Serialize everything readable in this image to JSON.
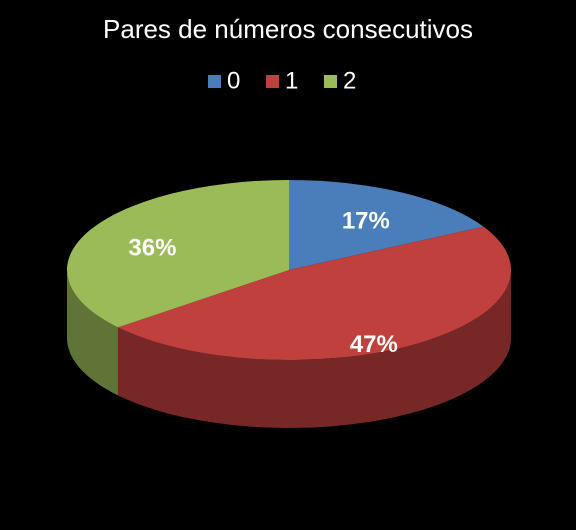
{
  "chart_data": {
    "type": "pie",
    "title": "Pares de números consecutivos",
    "categories": [
      "0",
      "1",
      "2"
    ],
    "values": [
      17,
      47,
      36
    ],
    "value_labels": [
      "17%",
      "47%",
      "36%"
    ],
    "colors": [
      "#4a7ebb",
      "#c0403d",
      "#9bbb59"
    ],
    "legend": "top"
  }
}
